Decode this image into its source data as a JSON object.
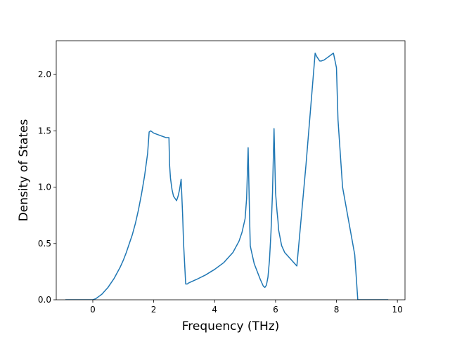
{
  "chart_data": {
    "type": "line",
    "xlabel": "Frequency (THz)",
    "ylabel": "Density of States",
    "xlim": [
      -1.2,
      10.25
    ],
    "ylim": [
      0.0,
      2.3
    ],
    "xticks": [
      0,
      2,
      4,
      6,
      8,
      10
    ],
    "yticks": [
      0.0,
      0.5,
      1.0,
      1.5,
      2.0
    ],
    "xtick_labels": [
      "0",
      "2",
      "4",
      "6",
      "8",
      "10"
    ],
    "ytick_labels": [
      "0.0",
      "0.5",
      "1.0",
      "1.5",
      "2.0"
    ],
    "grid": false,
    "line_color": "#1f77b4",
    "series": [
      {
        "x": [
          -0.9,
          0.0,
          0.1,
          0.2,
          0.3,
          0.4,
          0.5,
          0.6,
          0.7,
          0.8,
          0.9,
          1.0,
          1.1,
          1.2,
          1.3,
          1.4,
          1.5,
          1.6,
          1.7,
          1.8,
          1.85,
          1.9,
          1.95,
          2.0,
          2.1,
          2.2,
          2.3,
          2.4,
          2.5,
          2.52,
          2.55,
          2.6,
          2.65,
          2.7,
          2.75,
          2.8,
          2.85,
          2.9,
          2.95,
          2.98,
          3.05,
          3.1,
          3.15,
          3.4,
          3.7,
          4.0,
          4.3,
          4.6,
          4.8,
          4.9,
          5.0,
          5.05,
          5.1,
          5.15,
          5.17,
          5.2,
          5.25,
          5.3,
          5.4,
          5.5,
          5.6,
          5.65,
          5.7,
          5.75,
          5.8,
          5.85,
          5.9,
          5.95,
          6.0,
          6.05,
          6.08,
          6.1,
          6.15,
          6.2,
          6.3,
          6.5,
          6.7,
          7.0,
          7.3,
          7.35,
          7.4,
          7.45,
          7.5,
          7.6,
          7.7,
          7.8,
          7.9,
          8.0,
          8.05,
          8.1,
          8.15,
          8.2,
          8.3,
          8.4,
          8.5,
          8.6,
          8.7,
          8.8,
          8.9,
          9.7
        ],
        "y": [
          0.0,
          0.0,
          0.01,
          0.03,
          0.05,
          0.08,
          0.11,
          0.15,
          0.19,
          0.24,
          0.29,
          0.35,
          0.42,
          0.5,
          0.58,
          0.68,
          0.8,
          0.94,
          1.1,
          1.3,
          1.49,
          1.5,
          1.49,
          1.48,
          1.47,
          1.46,
          1.45,
          1.44,
          1.44,
          1.2,
          1.08,
          0.98,
          0.92,
          0.9,
          0.88,
          0.92,
          0.98,
          1.07,
          0.75,
          0.5,
          0.14,
          0.14,
          0.15,
          0.18,
          0.22,
          0.27,
          0.33,
          0.42,
          0.52,
          0.6,
          0.72,
          0.9,
          1.35,
          0.7,
          0.48,
          0.44,
          0.38,
          0.32,
          0.25,
          0.18,
          0.12,
          0.11,
          0.13,
          0.2,
          0.35,
          0.6,
          0.95,
          1.52,
          0.95,
          0.78,
          0.7,
          0.62,
          0.55,
          0.48,
          0.42,
          0.36,
          0.3,
          1.2,
          2.19,
          2.16,
          2.14,
          2.12,
          2.12,
          2.13,
          2.15,
          2.17,
          2.19,
          2.06,
          1.6,
          1.4,
          1.2,
          1.0,
          0.85,
          0.7,
          0.55,
          0.4,
          0.0,
          0.0,
          0.0,
          0.0
        ]
      }
    ]
  }
}
